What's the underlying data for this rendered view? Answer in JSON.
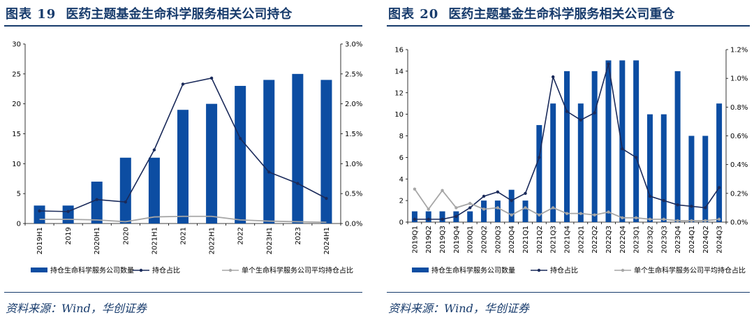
{
  "colors": {
    "bar": "#0c4da2",
    "line": "#1a2a5a",
    "avg": "#a6a6a6",
    "heading": "#173b6c"
  },
  "panels": [
    {
      "fig_label": "图表 19",
      "title": "医药主题基金生命科学服务相关公司持仓",
      "source": "资料来源：Wind，华创证券",
      "legend": [
        "持仓生命科学服务公司数量",
        "持仓占比",
        "单个生命科学服务公司平均持仓占比"
      ]
    },
    {
      "fig_label": "图表 20",
      "title": "医药主题基金生命科学服务相关公司重仓",
      "source": "资料来源：Wind，华创证券",
      "legend": [
        "持仓生命科学服务公司数量",
        "持仓占比",
        "单个生命科学服务公司平均持仓占比"
      ]
    }
  ],
  "chart_data": [
    {
      "type": "bar",
      "categories": [
        "2019H1",
        "2019",
        "2020H1",
        "2020",
        "2021H1",
        "2021",
        "2022H1",
        "2022",
        "2023H1",
        "2023",
        "2024H1"
      ],
      "series": [
        {
          "name": "持仓生命科学服务公司数量",
          "type": "bar",
          "axis": "left",
          "values": [
            3,
            3,
            7,
            11,
            11,
            19,
            20,
            23,
            24,
            25,
            24
          ]
        },
        {
          "name": "持仓占比",
          "type": "line",
          "axis": "right",
          "marker": true,
          "values": [
            0.21,
            0.2,
            0.4,
            0.36,
            1.23,
            2.33,
            2.43,
            1.42,
            0.86,
            0.67,
            0.42
          ]
        },
        {
          "name": "单个生命科学服务公司平均持仓占比",
          "type": "line",
          "axis": "right",
          "marker": false,
          "values": [
            0.07,
            0.07,
            0.06,
            0.03,
            0.11,
            0.12,
            0.12,
            0.06,
            0.04,
            0.03,
            0.02
          ]
        }
      ],
      "y_left": {
        "min": 0,
        "max": 30,
        "ticks": [
          "0",
          "5",
          "10",
          "15",
          "20",
          "25",
          "30"
        ]
      },
      "y_right": {
        "min": 0,
        "max": 3.0,
        "ticks": [
          "0.0%",
          "0.5%",
          "1.0%",
          "1.5%",
          "2.0%",
          "2.5%",
          "3.0%"
        ]
      },
      "grid": false,
      "legend_position": "bottom"
    },
    {
      "type": "bar",
      "categories": [
        "2019Q1",
        "2019Q2",
        "2019Q3",
        "2019Q4",
        "2020Q1",
        "2020Q2",
        "2020Q3",
        "2020Q4",
        "2021Q1",
        "2021Q2",
        "2021Q3",
        "2021Q4",
        "2022Q1",
        "2022Q2",
        "2022Q3",
        "2022Q4",
        "2023Q1",
        "2023Q2",
        "2023Q3",
        "2023Q4",
        "2024Q1",
        "2024Q2",
        "2024Q3"
      ],
      "series": [
        {
          "name": "持仓生命科学服务公司数量",
          "type": "bar",
          "axis": "left",
          "values": [
            1,
            1,
            1,
            1,
            1,
            2,
            2,
            3,
            2,
            9,
            11,
            14,
            11,
            14,
            15,
            15,
            15,
            10,
            10,
            14,
            8,
            8,
            11
          ]
        },
        {
          "name": "持仓占比",
          "type": "line",
          "axis": "right",
          "marker": true,
          "values": [
            0.02,
            0.02,
            0.02,
            0.04,
            0.1,
            0.18,
            0.21,
            0.15,
            0.2,
            0.45,
            1.01,
            0.77,
            0.71,
            0.76,
            1.1,
            0.51,
            0.45,
            0.18,
            0.15,
            0.12,
            0.11,
            0.1,
            0.24
          ]
        },
        {
          "name": "单个生命科学服务公司平均持仓占比",
          "type": "line",
          "axis": "right",
          "marker": true,
          "values": [
            0.23,
            0.09,
            0.22,
            0.1,
            0.13,
            0.09,
            0.1,
            0.05,
            0.1,
            0.05,
            0.1,
            0.06,
            0.06,
            0.05,
            0.07,
            0.03,
            0.03,
            0.02,
            0.02,
            0.01,
            0.01,
            0.01,
            0.02
          ]
        }
      ],
      "y_left": {
        "min": 0,
        "max": 16,
        "ticks": [
          "0",
          "2",
          "4",
          "6",
          "8",
          "10",
          "12",
          "14",
          "16"
        ]
      },
      "y_right": {
        "min": 0,
        "max": 1.2,
        "ticks": [
          "0.0%",
          "0.2%",
          "0.4%",
          "0.6%",
          "0.8%",
          "1.0%",
          "1.2%"
        ]
      },
      "grid": false,
      "legend_position": "bottom"
    }
  ]
}
